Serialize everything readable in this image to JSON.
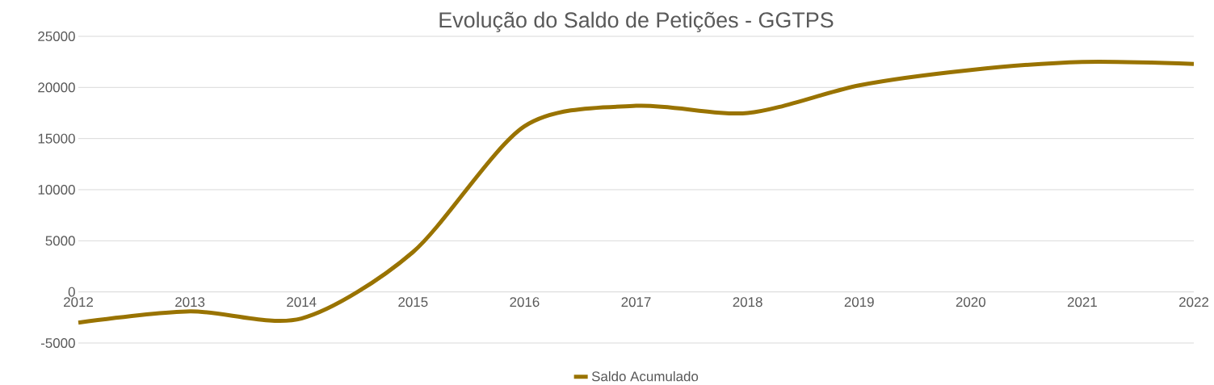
{
  "chart_data": {
    "type": "line",
    "title": "Evolução do Saldo de Petições - GGTPS",
    "categories": [
      "2012",
      "2013",
      "2014",
      "2015",
      "2016",
      "2017",
      "2018",
      "2019",
      "2020",
      "2021",
      "2022"
    ],
    "series": [
      {
        "name": "Saldo Acumulado",
        "color": "#997300",
        "values": [
          -3000,
          -1900,
          -2600,
          3900,
          16200,
          18200,
          17500,
          20200,
          21700,
          22500,
          22300
        ]
      }
    ],
    "ylim": [
      -5000,
      25000
    ],
    "yticks": [
      -5000,
      0,
      5000,
      10000,
      15000,
      20000,
      25000
    ],
    "grid": "y",
    "legend": "bottom",
    "marker": "none",
    "line_style": "solid"
  }
}
